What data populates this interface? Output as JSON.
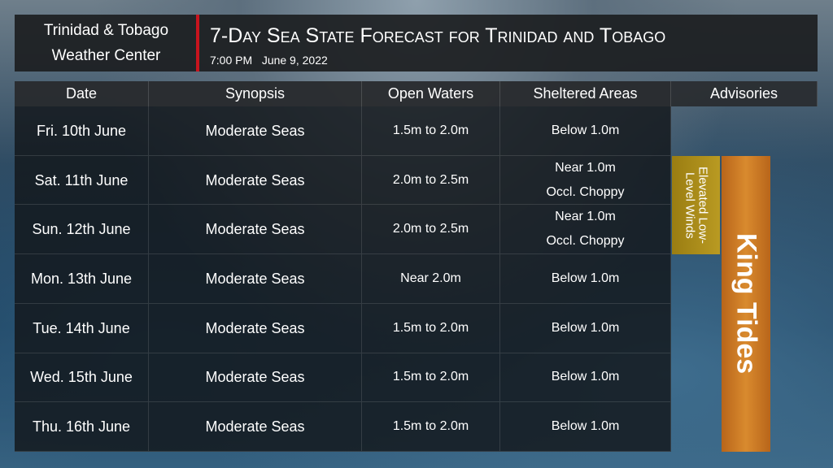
{
  "header": {
    "org": [
      "Trinidad & Tobago",
      "Weather Center"
    ],
    "title": "7-Day Sea State Forecast for Trinidad and Tobago",
    "time": "7:00 PM",
    "date": "June 9, 2022"
  },
  "table": {
    "columns": [
      "Date",
      "Synopsis",
      "Open Waters",
      "Sheltered Areas",
      "Advisories"
    ],
    "rows": [
      [
        "Fri. 10th June",
        "Moderate Seas",
        "1.5m to 2.0m",
        [
          "Below 1.0m"
        ]
      ],
      [
        "Sat. 11th June",
        "Moderate Seas",
        "2.0m to 2.5m",
        [
          "Near 1.0m",
          "Occl. Choppy"
        ]
      ],
      [
        "Sun. 12th June",
        "Moderate Seas",
        "2.0m to 2.5m",
        [
          "Near 1.0m",
          "Occl. Choppy"
        ]
      ],
      [
        "Mon. 13th June",
        "Moderate Seas",
        "Near 2.0m",
        [
          "Below 1.0m"
        ]
      ],
      [
        "Tue. 14th June",
        "Moderate Seas",
        "1.5m to 2.0m",
        [
          "Below 1.0m"
        ]
      ],
      [
        "Wed. 15th June",
        "Moderate Seas",
        "1.5m to 2.0m",
        [
          "Below 1.0m"
        ]
      ],
      [
        "Thu. 16th June",
        "Moderate Seas",
        "1.5m to 2.0m",
        [
          "Below 1.0m"
        ]
      ]
    ],
    "advisories": [
      {
        "label": "Elevated Low-Level Winds"
      },
      {
        "label": "King Tides"
      }
    ]
  }
}
